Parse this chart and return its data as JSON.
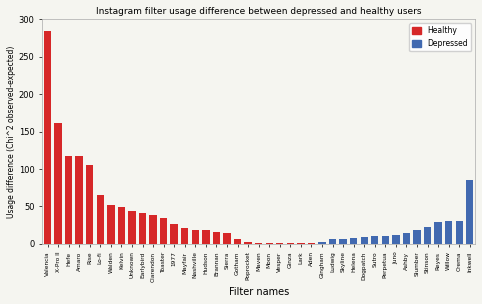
{
  "title": "Instagram filter usage difference between depressed and healthy users",
  "xlabel": "Filter names",
  "ylabel": "Usage difference (Chi^2 observed-expected)",
  "filters": [
    "Valencia",
    "X-Pro II",
    "Hefe",
    "Amaro",
    "Rise",
    "Lo-fi",
    "Walden",
    "Kelvin",
    "Unknown",
    "Earlybird",
    "Clarendon",
    "Toaster",
    "1977",
    "Mayfair",
    "Nashville",
    "Hudson",
    "Brannan",
    "Sierra",
    "Gotham",
    "Poprocket",
    "Maven",
    "Moon",
    "Vesper",
    "Ginza",
    "Lark",
    "Aden",
    "Gingham",
    "Ludwig",
    "Skyline",
    "Helena",
    "Dogpatch",
    "Sutro",
    "Perpetua",
    "Juno",
    "Ashby",
    "Slumber",
    "Stinson",
    "Reyes",
    "Willow",
    "Crema",
    "Inkwell"
  ],
  "values": [
    285,
    162,
    117,
    117,
    106,
    65,
    52,
    49,
    44,
    41,
    38,
    35,
    27,
    21,
    19,
    18,
    16,
    14,
    7,
    3,
    1,
    0.5,
    0.5,
    0.5,
    1,
    1,
    3,
    6,
    7,
    8,
    9,
    10,
    11,
    12,
    14,
    19,
    22,
    29,
    30,
    30,
    85
  ],
  "colors": [
    "#d62728",
    "#d62728",
    "#d62728",
    "#d62728",
    "#d62728",
    "#d62728",
    "#d62728",
    "#d62728",
    "#d62728",
    "#d62728",
    "#d62728",
    "#d62728",
    "#d62728",
    "#d62728",
    "#d62728",
    "#d62728",
    "#d62728",
    "#d62728",
    "#d62728",
    "#d62728",
    "#d62728",
    "#d62728",
    "#d62728",
    "#d62728",
    "#d62728",
    "#d62728",
    "#4169b0",
    "#4169b0",
    "#4169b0",
    "#4169b0",
    "#4169b0",
    "#4169b0",
    "#4169b0",
    "#4169b0",
    "#4169b0",
    "#4169b0",
    "#4169b0",
    "#4169b0",
    "#4169b0",
    "#4169b0",
    "#4169b0"
  ],
  "ylim": [
    0,
    300
  ],
  "yticks": [
    0,
    50,
    100,
    150,
    200,
    250,
    300
  ],
  "bg_color": "#f5f5f0",
  "healthy_color": "#d62728",
  "depressed_color": "#4169b0"
}
